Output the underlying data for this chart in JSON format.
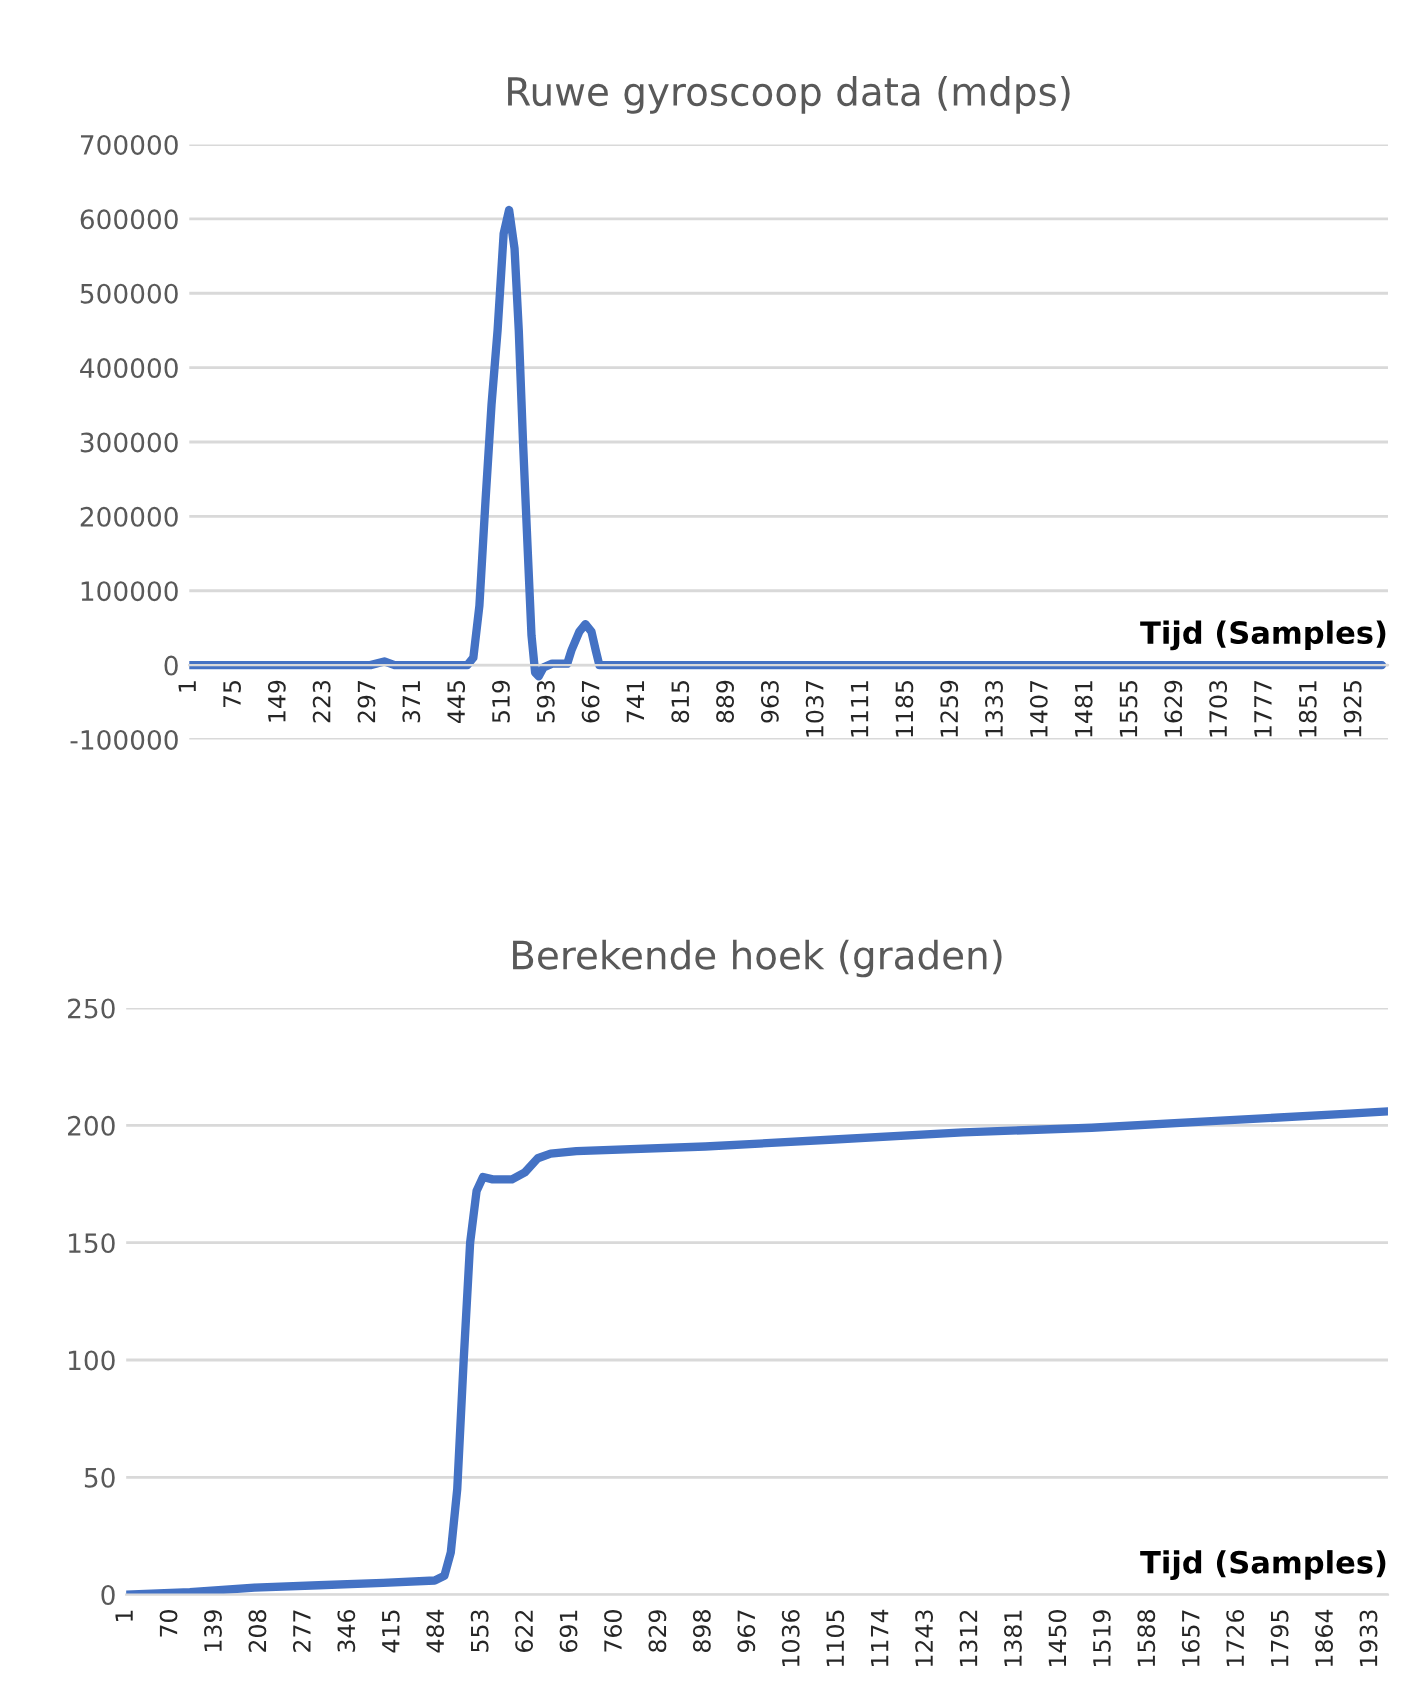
{
  "chart_data": [
    {
      "type": "line",
      "title": "Ruwe gyroscoop data (mdps)",
      "xlabel": "Tijd (Samples)",
      "grid": "y",
      "line_style": "solid",
      "marker": "none",
      "series": [
        {
          "color": "#4472c4",
          "x": [
            1,
            300,
            323,
            340,
            460,
            470,
            480,
            490,
            500,
            510,
            520,
            529,
            538,
            545,
            552,
            560,
            566,
            572,
            578,
            586,
            600,
            625,
            632,
            645,
            655,
            665,
            672,
            678,
            1970
          ],
          "values": [
            0,
            0,
            5000,
            0,
            0,
            10000,
            80000,
            220000,
            350000,
            450000,
            580000,
            612000,
            560000,
            450000,
            300000,
            150000,
            40000,
            -10000,
            -15000,
            -3000,
            2000,
            2000,
            20000,
            45000,
            55000,
            45000,
            20000,
            0,
            0
          ]
        }
      ],
      "xlim": [
        1,
        1980
      ],
      "xticks": [
        1,
        75,
        149,
        223,
        297,
        371,
        445,
        519,
        593,
        667,
        741,
        815,
        889,
        963,
        1037,
        1111,
        1185,
        1259,
        1333,
        1407,
        1481,
        1555,
        1629,
        1703,
        1777,
        1851,
        1925
      ],
      "ylim": [
        -100000,
        700000
      ],
      "yticks": [
        -100000,
        0,
        100000,
        200000,
        300000,
        400000,
        500000,
        600000,
        700000
      ]
    },
    {
      "type": "line",
      "title": "Berekende hoek (graden)",
      "xlabel": "Tijd (Samples)",
      "grid": "y",
      "line_style": "solid",
      "marker": "none",
      "series": [
        {
          "color": "#4472c4",
          "x": [
            1,
            100,
            200,
            300,
            400,
            480,
            495,
            505,
            515,
            525,
            535,
            545,
            555,
            570,
            600,
            620,
            640,
            660,
            700,
            900,
            1100,
            1300,
            1500,
            1700,
            1900,
            1960
          ],
          "values": [
            0,
            1,
            3,
            4,
            5,
            6,
            8,
            18,
            45,
            100,
            150,
            172,
            178,
            177,
            177,
            180,
            186,
            188,
            189,
            191,
            194,
            197,
            199,
            202,
            205,
            206
          ]
        }
      ],
      "xlim": [
        1,
        1960
      ],
      "xticks": [
        1,
        70,
        139,
        208,
        277,
        346,
        415,
        484,
        553,
        622,
        691,
        760,
        829,
        898,
        967,
        1036,
        1105,
        1174,
        1243,
        1312,
        1381,
        1450,
        1519,
        1588,
        1657,
        1726,
        1795,
        1864,
        1933
      ],
      "ylim": [
        0,
        250
      ],
      "yticks": [
        0,
        50,
        100,
        150,
        200,
        250
      ]
    }
  ]
}
